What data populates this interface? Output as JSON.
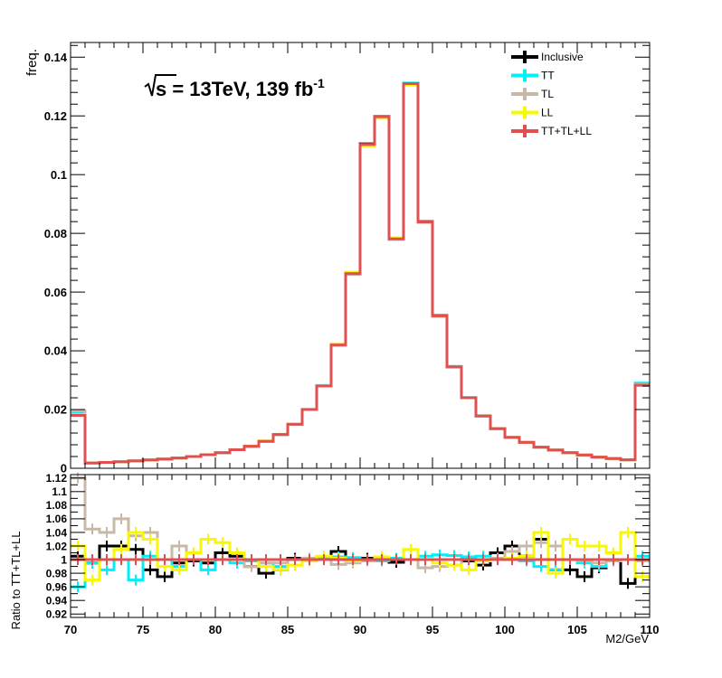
{
  "chart_data": [
    {
      "type": "line",
      "title": "√s = 13TeV, 139 fb⁻¹",
      "title_main": "s = 13TeV, 139 fb",
      "title_sup": "-1",
      "ylabel": "freq.",
      "xlim": [
        70,
        110
      ],
      "ylim": [
        0,
        0.145
      ],
      "yticks": [
        "0",
        "0.02",
        "0.04",
        "0.06",
        "0.08",
        "0.1",
        "0.12",
        "0.14"
      ],
      "ytick_values": [
        0,
        0.02,
        0.04,
        0.06,
        0.08,
        0.1,
        0.12,
        0.14
      ],
      "legend_position": "top-right",
      "bin_edges": [
        70,
        71,
        72,
        73,
        74,
        75,
        76,
        77,
        78,
        79,
        80,
        81,
        82,
        83,
        84,
        85,
        86,
        87,
        88,
        89,
        90,
        91,
        92,
        93,
        94,
        95,
        96,
        97,
        98,
        99,
        100,
        101,
        102,
        103,
        104,
        105,
        106,
        107,
        108,
        109,
        110
      ],
      "series": [
        {
          "name": "Inclusive",
          "color": "#000000",
          "values": [
            0.0185,
            0.0018,
            0.002,
            0.0022,
            0.0025,
            0.0028,
            0.0031,
            0.0035,
            0.004,
            0.0046,
            0.0053,
            0.0063,
            0.0075,
            0.0092,
            0.0115,
            0.015,
            0.02,
            0.028,
            0.042,
            0.0663,
            0.1105,
            0.1198,
            0.078,
            0.131,
            0.0838,
            0.0518,
            0.0345,
            0.024,
            0.0178,
            0.0135,
            0.0105,
            0.0088,
            0.0072,
            0.0062,
            0.0053,
            0.0045,
            0.0038,
            0.0033,
            0.0029,
            0.0285
          ]
        },
        {
          "name": "TT",
          "color": "#00f0f8",
          "values": [
            0.0188,
            0.0018,
            0.002,
            0.0022,
            0.0025,
            0.0028,
            0.0031,
            0.0035,
            0.004,
            0.0046,
            0.0053,
            0.0063,
            0.0075,
            0.0092,
            0.0115,
            0.015,
            0.02,
            0.0282,
            0.0422,
            0.0665,
            0.1102,
            0.1196,
            0.0782,
            0.1312,
            0.0842,
            0.0522,
            0.0347,
            0.0241,
            0.0179,
            0.0135,
            0.0105,
            0.0088,
            0.0072,
            0.0062,
            0.0053,
            0.0045,
            0.0038,
            0.0033,
            0.0029,
            0.029
          ]
        },
        {
          "name": "TL",
          "color": "#c8b8a8",
          "values": [
            0.0195,
            0.0018,
            0.002,
            0.0022,
            0.0025,
            0.0028,
            0.0031,
            0.0035,
            0.004,
            0.0046,
            0.0053,
            0.0063,
            0.0075,
            0.0092,
            0.0115,
            0.015,
            0.02,
            0.028,
            0.042,
            0.066,
            0.11,
            0.1195,
            0.078,
            0.1308,
            0.0838,
            0.0518,
            0.0345,
            0.024,
            0.0178,
            0.0135,
            0.0105,
            0.0088,
            0.0072,
            0.0062,
            0.0053,
            0.0045,
            0.0038,
            0.0033,
            0.0029,
            0.0285
          ]
        },
        {
          "name": "LL",
          "color": "#f8f800",
          "values": [
            0.0182,
            0.0018,
            0.002,
            0.0022,
            0.0025,
            0.0028,
            0.0031,
            0.0035,
            0.004,
            0.0046,
            0.0054,
            0.0064,
            0.0076,
            0.0093,
            0.0116,
            0.0151,
            0.0201,
            0.0281,
            0.0424,
            0.0668,
            0.1098,
            0.1192,
            0.0785,
            0.1305,
            0.0836,
            0.0516,
            0.0344,
            0.024,
            0.0178,
            0.0135,
            0.0105,
            0.0088,
            0.0072,
            0.0062,
            0.0053,
            0.0045,
            0.0038,
            0.0033,
            0.0029,
            0.0282
          ]
        },
        {
          "name": "TT+TL+LL",
          "color": "#e05050",
          "values": [
            0.018,
            0.0018,
            0.002,
            0.0022,
            0.0025,
            0.0028,
            0.0031,
            0.0035,
            0.004,
            0.0046,
            0.0053,
            0.0063,
            0.0075,
            0.0092,
            0.0115,
            0.015,
            0.02,
            0.028,
            0.042,
            0.0663,
            0.1103,
            0.1197,
            0.0781,
            0.131,
            0.0839,
            0.0519,
            0.0345,
            0.024,
            0.0178,
            0.0135,
            0.0105,
            0.0088,
            0.0072,
            0.0062,
            0.0053,
            0.0045,
            0.0038,
            0.0033,
            0.0029,
            0.0283
          ]
        }
      ]
    },
    {
      "type": "line",
      "ylabel": "Ratio to TT+TL+LL",
      "xlabel": "M2/GeV",
      "xlim": [
        70,
        110
      ],
      "ylim": [
        0.915,
        1.125
      ],
      "xticks": [
        "70",
        "75",
        "80",
        "85",
        "90",
        "95",
        "100",
        "105",
        "110"
      ],
      "xtick_values": [
        70,
        75,
        80,
        85,
        90,
        95,
        100,
        105,
        110
      ],
      "yticks": [
        "0.92",
        "0.94",
        "0.96",
        "0.98",
        "1",
        "1.02",
        "1.04",
        "1.06",
        "1.08",
        "1.1",
        "1.12"
      ],
      "ytick_values": [
        0.92,
        0.94,
        0.96,
        0.98,
        1.0,
        1.02,
        1.04,
        1.06,
        1.08,
        1.1,
        1.12
      ],
      "bin_edges": [
        70,
        71,
        72,
        73,
        74,
        75,
        76,
        77,
        78,
        79,
        80,
        81,
        82,
        83,
        84,
        85,
        86,
        87,
        88,
        89,
        90,
        91,
        92,
        93,
        94,
        95,
        96,
        97,
        98,
        99,
        100,
        101,
        102,
        103,
        104,
        105,
        106,
        107,
        108,
        109,
        110
      ],
      "series": [
        {
          "name": "Inclusive",
          "color": "#000000",
          "values": [
            1.005,
            0.995,
            1.02,
            1.02,
            1.015,
            0.985,
            0.975,
            0.995,
            0.998,
            0.995,
            1.01,
            1.005,
            0.99,
            0.98,
            0.985,
            1.002,
            1.0,
            1.003,
            1.012,
            1.0,
            1.002,
            1.0,
            0.996,
            1.0,
            1.0,
            1.0,
            1.0,
            0.998,
            0.992,
            1.01,
            1.02,
            1.005,
            1.03,
            0.985,
            0.985,
            0.975,
            0.988,
            0.998,
            0.965,
            1.0
          ]
        },
        {
          "name": "TT",
          "color": "#00f0f8",
          "values": [
            0.96,
            0.995,
            0.985,
            1.0,
            0.97,
            1.005,
            1.0,
            0.99,
            1.0,
            0.985,
            1.0,
            0.995,
            0.998,
            0.995,
            0.99,
            1.0,
            1.0,
            1.002,
            1.004,
            1.003,
            0.999,
            0.998,
            1.002,
            1.0,
            1.005,
            1.007,
            1.006,
            1.004,
            1.005,
            1.0,
            1.0,
            0.998,
            0.99,
            0.985,
            1.0,
            0.995,
            0.99,
            1.0,
            1.0,
            1.005
          ]
        },
        {
          "name": "TL",
          "color": "#c8b8a8",
          "values": [
            1.12,
            1.045,
            1.04,
            1.06,
            1.035,
            1.04,
            1.0,
            1.02,
            1.0,
            1.0,
            1.0,
            1.0,
            0.99,
            0.995,
            0.995,
            1.0,
            1.002,
            1.0,
            0.993,
            0.995,
            0.998,
            1.0,
            1.0,
            1.0,
            0.988,
            0.99,
            0.992,
            1.0,
            1.0,
            1.002,
            1.012,
            1.02,
            1.025,
            1.02,
            1.0,
            0.998,
            0.995,
            0.998,
            1.0,
            0.998
          ]
        },
        {
          "name": "LL",
          "color": "#f8f800",
          "values": [
            1.02,
            0.97,
            1.0,
            1.015,
            1.04,
            1.03,
            0.99,
            0.985,
            1.01,
            1.03,
            1.025,
            1.01,
            1.0,
            0.99,
            0.985,
            0.992,
            0.998,
            1.005,
            1.002,
            0.998,
            1.0,
            1.004,
            1.0,
            1.015,
            1.0,
            0.995,
            0.992,
            0.985,
            0.998,
            1.0,
            1.002,
            1.005,
            1.04,
            0.98,
            1.03,
            1.02,
            1.02,
            1.01,
            1.04,
            0.975
          ]
        },
        {
          "name": "TT+TL+LL",
          "color": "#e05050",
          "values": [
            1,
            1,
            1,
            1,
            1,
            1,
            1,
            1,
            1,
            1,
            1,
            1,
            1,
            1,
            1,
            1,
            1,
            1,
            1,
            1,
            1,
            1,
            1,
            1,
            1,
            1,
            1,
            1,
            1,
            1,
            1,
            1,
            1,
            1,
            1,
            1,
            1,
            1,
            1,
            1
          ]
        }
      ]
    }
  ]
}
